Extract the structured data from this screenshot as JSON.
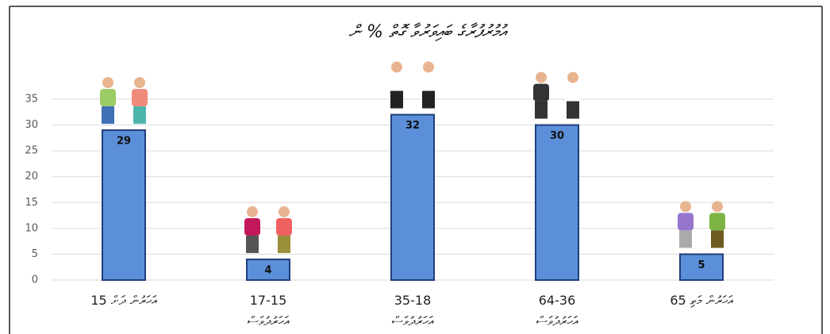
{
  "chart_data": {
    "type": "bar",
    "title": "އުމުރުފުރާގެ ބައިވަރުވާ ގޮތް % ން",
    "categories": [
      "15 އަހަރުން ދަށް",
      "17-15\nއަހަރުދުވަސް",
      "35-18\nއަހަރުދުވަސް",
      "64-36\nއަހަރުދުވަސް",
      "65 އަހަރުން މަތި"
    ],
    "values": [
      29,
      4,
      32,
      30,
      5
    ],
    "color": "#5b8fd9",
    "ylim": [
      0,
      35
    ],
    "yticks": [
      0,
      5,
      10,
      15,
      20,
      25,
      30,
      35
    ],
    "grid": true
  }
}
